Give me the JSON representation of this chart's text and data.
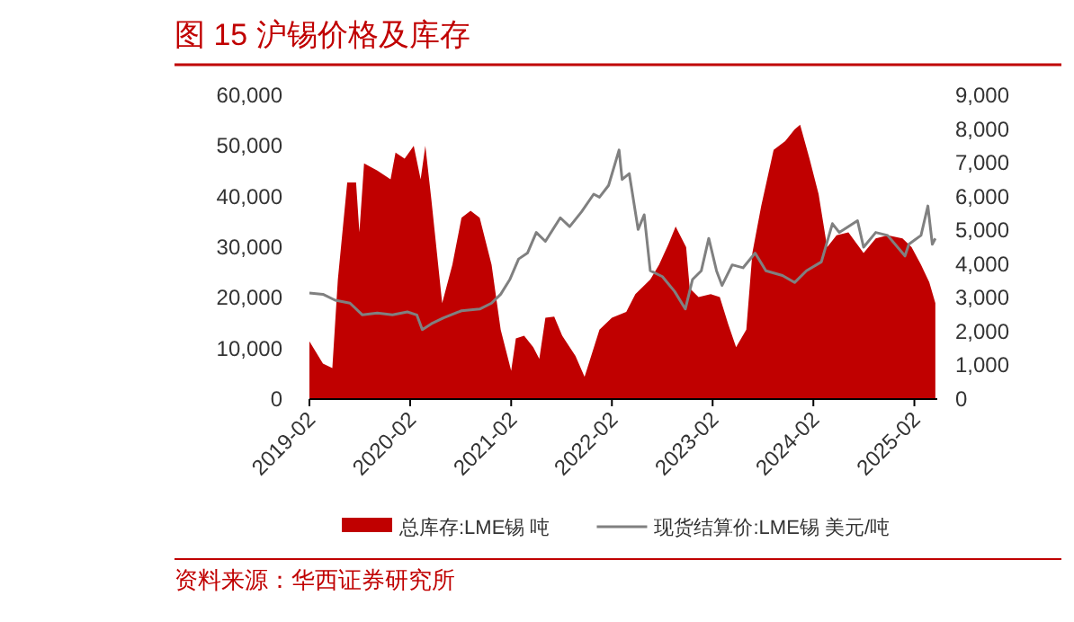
{
  "chart_data": {
    "type": "line",
    "title": "图 15 沪锡价格及库存",
    "annotations": [
      "资料来源：华西证券研究所"
    ],
    "legend": "bottom",
    "grid": false,
    "xlim": [
      "2019-02-01",
      "2025-04-25"
    ],
    "xticks": [
      "2019-02",
      "2020-02",
      "2021-02",
      "2022-02",
      "2023-02",
      "2024-02",
      "2025-02"
    ],
    "ylim": [
      0,
      60000
    ],
    "yticks": [
      0,
      {
        "value": 10000,
        "label": "10,000"
      },
      {
        "value": 20000,
        "label": "20,000"
      },
      {
        "value": 30000,
        "label": "30,000"
      },
      {
        "value": 40000,
        "label": "40,000"
      },
      {
        "value": 50000,
        "label": "50,000"
      },
      {
        "value": 60000,
        "label": "60,000"
      }
    ],
    "y2lim": [
      0,
      9000
    ],
    "y2ticks": [
      0,
      {
        "value": 1000,
        "label": "1,000"
      },
      {
        "value": 2000,
        "label": "2,000"
      },
      {
        "value": 3000,
        "label": "3,000"
      },
      {
        "value": 4000,
        "label": "4,000"
      },
      {
        "value": 5000,
        "label": "5,000"
      },
      {
        "value": 6000,
        "label": "6,000"
      },
      {
        "value": 7000,
        "label": "7,000"
      },
      {
        "value": 8000,
        "label": "8,000"
      },
      {
        "value": 9000,
        "label": "9,000"
      }
    ],
    "series": [
      {
        "name": "总库存:LME锡 吨",
        "type": "area",
        "axis": "y2",
        "color": "#c00000",
        "x": [
          "2019-02-01",
          "2019-03-22",
          "2019-04-25",
          "2019-05-15",
          "2019-06-18",
          "2019-07-20",
          "2019-08-01",
          "2019-08-18",
          "2019-10-05",
          "2019-11-22",
          "2019-12-10",
          "2020-01-12",
          "2020-02-14",
          "2020-03-10",
          "2020-03-27",
          "2020-04-18",
          "2020-05-27",
          "2020-07-03",
          "2020-08-05",
          "2020-09-07",
          "2020-10-10",
          "2020-11-22",
          "2020-12-25",
          "2021-02-01",
          "2021-02-18",
          "2021-03-20",
          "2021-04-22",
          "2021-05-14",
          "2021-06-05",
          "2021-07-07",
          "2021-08-05",
          "2021-09-22",
          "2021-10-25",
          "2021-12-18",
          "2022-02-01",
          "2022-03-25",
          "2022-04-27",
          "2022-06-20",
          "2022-07-22",
          "2022-08-25",
          "2022-09-20",
          "2022-10-28",
          "2022-11-10",
          "2022-12-12",
          "2023-01-25",
          "2023-02-27",
          "2023-03-29",
          "2023-04-27",
          "2023-06-03",
          "2023-06-25",
          "2023-07-27",
          "2023-09-10",
          "2023-10-22",
          "2023-11-25",
          "2023-12-15",
          "2024-01-18",
          "2024-02-20",
          "2024-03-22",
          "2024-04-25",
          "2024-06-07",
          "2024-08-01",
          "2024-09-14",
          "2024-10-27",
          "2024-12-20",
          "2025-01-22",
          "2025-02-25",
          "2025-03-27",
          "2025-04-18"
        ],
        "values": [
          1710,
          1050,
          920,
          3540,
          6420,
          6420,
          4940,
          6980,
          6770,
          6510,
          7300,
          7120,
          7500,
          6510,
          7500,
          5900,
          2840,
          3980,
          5370,
          5580,
          5370,
          3980,
          2060,
          840,
          1800,
          1880,
          1540,
          1190,
          2410,
          2440,
          1880,
          1280,
          660,
          2060,
          2410,
          2580,
          3110,
          3540,
          3980,
          4590,
          5110,
          4500,
          3280,
          3020,
          3110,
          3020,
          2230,
          1540,
          2060,
          4330,
          5720,
          7380,
          7640,
          7990,
          8130,
          7120,
          6070,
          4500,
          4850,
          4940,
          4330,
          4760,
          4850,
          4760,
          4500,
          3980,
          3460,
          2840
        ]
      },
      {
        "name": "现货结算价:LME锡 美元/吨",
        "axis": "y",
        "color": "#808080",
        "x": [
          "2019-02-01",
          "2019-03-22",
          "2019-05-05",
          "2019-06-28",
          "2019-08-12",
          "2019-10-05",
          "2019-11-29",
          "2020-01-22",
          "2020-02-25",
          "2020-03-16",
          "2020-04-18",
          "2020-06-01",
          "2020-08-05",
          "2020-10-10",
          "2020-11-22",
          "2020-12-25",
          "2021-01-27",
          "2021-02-28",
          "2021-04-01",
          "2021-05-03",
          "2021-06-05",
          "2021-07-29",
          "2021-09-01",
          "2021-10-14",
          "2021-11-27",
          "2021-12-18",
          "2022-01-20",
          "2022-02-27",
          "2022-03-10",
          "2022-04-05",
          "2022-05-07",
          "2022-05-29",
          "2022-06-20",
          "2022-08-03",
          "2022-09-16",
          "2022-10-25",
          "2022-11-20",
          "2022-12-22",
          "2023-01-18",
          "2023-02-15",
          "2023-03-07",
          "2023-04-13",
          "2023-05-22",
          "2023-07-05",
          "2023-08-13",
          "2023-10-12",
          "2023-11-25",
          "2024-01-07",
          "2024-03-01",
          "2024-04-10",
          "2024-05-05",
          "2024-07-10",
          "2024-08-01",
          "2024-09-14",
          "2024-10-27",
          "2024-12-29",
          "2025-01-12",
          "2025-02-25",
          "2025-03-22",
          "2025-04-07",
          "2025-04-18"
        ],
        "values": [
          20930,
          20700,
          19530,
          18950,
          16630,
          16980,
          16630,
          17210,
          16630,
          13720,
          14880,
          16050,
          17440,
          17790,
          18950,
          20700,
          23600,
          27670,
          28840,
          32910,
          31160,
          35810,
          34070,
          36980,
          40470,
          39880,
          42210,
          49190,
          43370,
          44530,
          33490,
          36400,
          25350,
          24190,
          21280,
          17790,
          23600,
          25350,
          31740,
          25350,
          22440,
          26510,
          25930,
          28840,
          25350,
          24420,
          23020,
          25350,
          27090,
          34650,
          32910,
          35230,
          30000,
          32910,
          32330,
          28260,
          30580,
          32330,
          38140,
          30580,
          31740
        ]
      }
    ]
  }
}
